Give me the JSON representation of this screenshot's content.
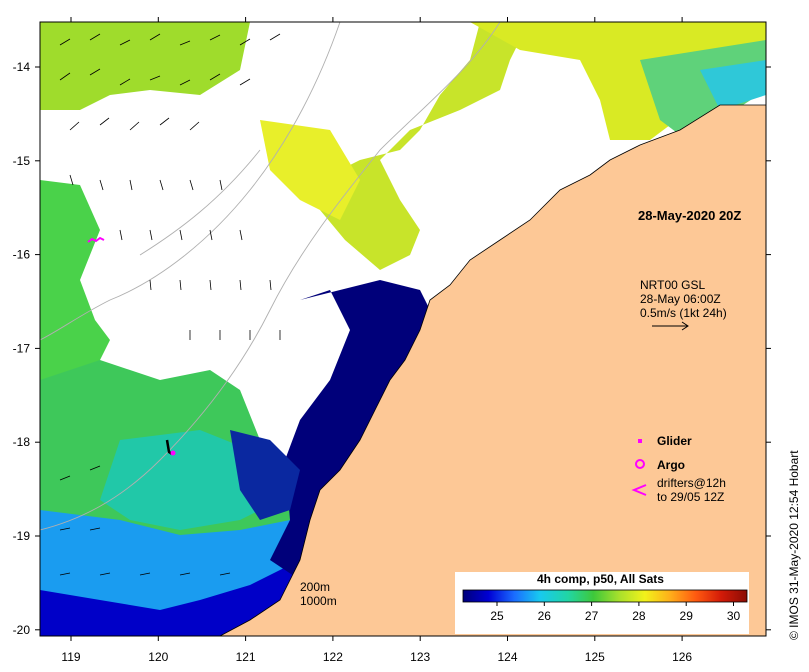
{
  "title": "28-May-2020 20Z",
  "current_info": {
    "line1": "NRT00 GSL",
    "line2": "28-May 06:00Z",
    "line3": "0.5m/s (1kt 24h)"
  },
  "legend": {
    "glider": "Glider",
    "argo": "Argo",
    "drifters_line1": "drifters@12h",
    "drifters_line2": "to 29/05 12Z"
  },
  "depth_labels": [
    "200m",
    "1000m"
  ],
  "colorbar": {
    "title": "4h comp, p50, All Sats",
    "ticks": [
      "25",
      "26",
      "27",
      "28",
      "29",
      "30"
    ],
    "colors": [
      "#00007a",
      "#0000d4",
      "#1a6cff",
      "#18c9f0",
      "#21d6a4",
      "#3ec83a",
      "#a8e02c",
      "#f2f21b",
      "#ffae1a",
      "#ff5a10",
      "#d21a08",
      "#8a0c04"
    ]
  },
  "credit": "© IMOS 31-May-2020 12:54 Hobart",
  "axes": {
    "x_ticks": [
      "119",
      "120",
      "121",
      "122",
      "123",
      "124",
      "125",
      "126"
    ],
    "y_ticks": [
      "-14",
      "-15",
      "-16",
      "-17",
      "-18",
      "-19",
      "-20"
    ]
  },
  "colors": {
    "land": "#fdc896",
    "marker": "#ff00ff"
  }
}
